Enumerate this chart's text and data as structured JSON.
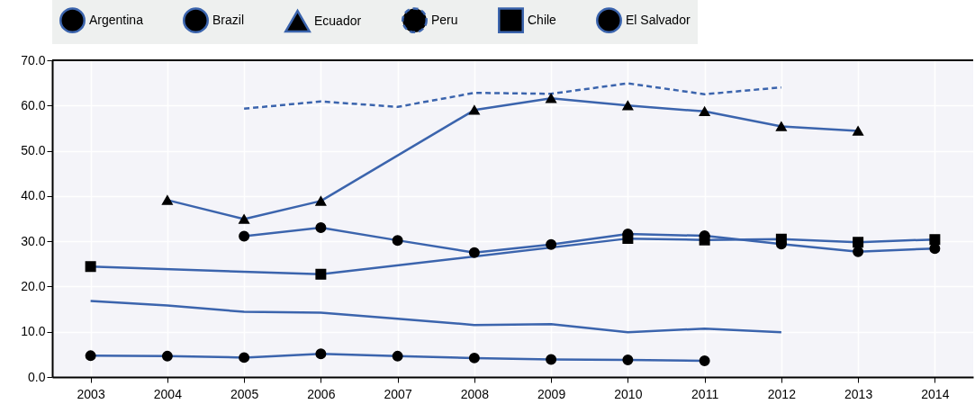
{
  "chart_data": {
    "type": "line",
    "xlim": [
      2002.5,
      2014.5
    ],
    "xticks": [
      2003,
      2004,
      2005,
      2006,
      2007,
      2008,
      2009,
      2010,
      2011,
      2012,
      2013,
      2014
    ],
    "ylim": [
      0,
      70
    ],
    "yticks": [
      {
        "value": 0,
        "label": "0.0"
      },
      {
        "value": 10,
        "label": "10.0"
      },
      {
        "value": 20,
        "label": "20.0"
      },
      {
        "value": 30,
        "label": "30.0"
      },
      {
        "value": 40,
        "label": "40.0"
      },
      {
        "value": 50,
        "label": "50.0"
      },
      {
        "value": 60,
        "label": "60.0"
      },
      {
        "value": 70,
        "label": "70.0"
      }
    ],
    "grid": true,
    "legend": "top",
    "series": [
      {
        "name": "Argentina",
        "color": "#3b64ad",
        "marker": "none",
        "line_style": "solid",
        "x": [
          2003,
          2004,
          2005,
          2006,
          2007,
          2008,
          2009,
          2010,
          2011,
          2012
        ],
        "values": [
          16.8,
          15.8,
          14.4,
          14.2,
          12.9,
          11.5,
          11.7,
          9.9,
          10.7,
          9.9
        ]
      },
      {
        "name": "Brazil",
        "color": "#3b64ad",
        "marker": "circle",
        "line_style": "solid",
        "x": [
          2003,
          2004,
          2005,
          2006,
          2007,
          2008,
          2009,
          2010,
          2011
        ],
        "values": [
          4.7,
          4.6,
          4.3,
          5.1,
          4.6,
          4.2,
          3.9,
          3.8,
          3.6
        ]
      },
      {
        "name": "Ecuador",
        "color": "#3b64ad",
        "marker": "triangle",
        "line_style": "solid",
        "x": [
          2004,
          2005,
          2006,
          2008,
          2009,
          2010,
          2011,
          2012,
          2013
        ],
        "values": [
          39.1,
          34.9,
          38.9,
          59.0,
          61.6,
          60.0,
          58.7,
          55.4,
          54.4
        ]
      },
      {
        "name": "Peru",
        "color": "#3b64ad",
        "marker": "none",
        "line_style": "dashed",
        "x": [
          2005,
          2006,
          2007,
          2008,
          2009,
          2010,
          2011,
          2012
        ],
        "values": [
          59.3,
          60.9,
          59.7,
          62.8,
          62.6,
          64.9,
          62.5,
          64.0
        ]
      },
      {
        "name": "Chile",
        "color": "#3b64ad",
        "marker": "square",
        "line_style": "solid",
        "x": [
          2003,
          2006,
          2010,
          2011,
          2012,
          2013,
          2014
        ],
        "values": [
          24.4,
          22.7,
          30.6,
          30.3,
          30.5,
          29.8,
          30.4
        ]
      },
      {
        "name": "El Salvador",
        "color": "#3b64ad",
        "marker": "circle",
        "line_style": "solid",
        "x": [
          2005,
          2006,
          2007,
          2008,
          2009,
          2010,
          2011,
          2012,
          2013,
          2014
        ],
        "values": [
          31.1,
          33.0,
          30.2,
          27.5,
          29.3,
          31.6,
          31.2,
          29.4,
          27.7,
          28.4
        ]
      }
    ]
  }
}
